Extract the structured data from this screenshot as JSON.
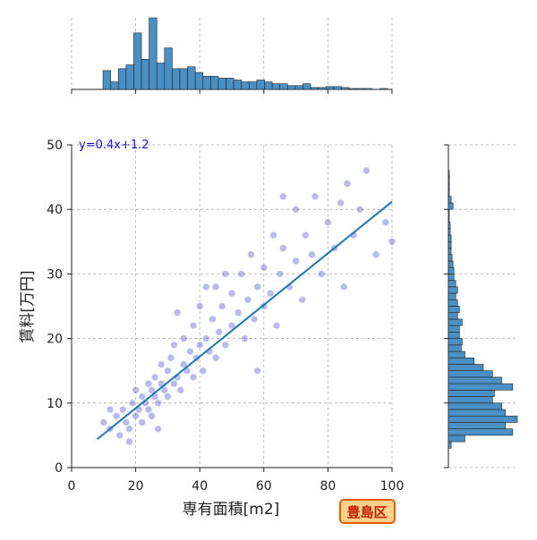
{
  "chart_data": {
    "type": "scatter",
    "xlabel": "専有面積[m2]",
    "ylabel": "賃料[万円]",
    "annotation": "y=0.4x+1.2",
    "badge": "豊島区",
    "xlim": [
      0,
      100
    ],
    "ylim": [
      0,
      50
    ],
    "xticks": [
      0,
      20,
      40,
      60,
      80,
      100
    ],
    "yticks": [
      0,
      10,
      20,
      30,
      40,
      50
    ],
    "grid": true,
    "color": "#3a3acd",
    "fit_color": "#1f77b4",
    "hist_color": "#4a90c4",
    "x": [
      10,
      12,
      14,
      15,
      16,
      17,
      18,
      19,
      20,
      20,
      21,
      22,
      22,
      23,
      24,
      24,
      25,
      25,
      26,
      26,
      27,
      28,
      28,
      29,
      30,
      30,
      31,
      32,
      32,
      33,
      34,
      35,
      35,
      36,
      37,
      38,
      38,
      39,
      40,
      40,
      41,
      42,
      43,
      44,
      45,
      45,
      46,
      47,
      48,
      48,
      50,
      50,
      52,
      53,
      54,
      55,
      56,
      57,
      58,
      60,
      60,
      62,
      63,
      64,
      65,
      66,
      68,
      70,
      70,
      72,
      73,
      75,
      76,
      78,
      80,
      82,
      84,
      85,
      88,
      90,
      92,
      95,
      98,
      100,
      12,
      18,
      27,
      33,
      42,
      58,
      66,
      86
    ],
    "y": [
      7,
      6,
      8,
      5,
      9,
      7,
      6,
      10,
      8,
      12,
      9,
      7,
      11,
      10,
      13,
      9,
      8,
      12,
      11,
      14,
      10,
      13,
      16,
      12,
      11,
      15,
      17,
      13,
      19,
      14,
      12,
      16,
      20,
      15,
      18,
      14,
      22,
      17,
      19,
      25,
      15,
      20,
      18,
      23,
      17,
      28,
      21,
      25,
      19,
      30,
      22,
      27,
      24,
      30,
      20,
      26,
      33,
      23,
      28,
      25,
      31,
      27,
      36,
      22,
      30,
      34,
      28,
      32,
      40,
      26,
      36,
      33,
      42,
      30,
      38,
      34,
      41,
      28,
      36,
      40,
      46,
      33,
      38,
      35,
      9,
      4,
      6,
      24,
      28,
      15,
      42,
      44
    ],
    "fit": {
      "x": [
        8,
        100
      ],
      "y": [
        4.4,
        41.2
      ]
    },
    "marginal_x": {
      "bins": [
        9.8,
        12.2,
        14.6,
        17,
        19.4,
        21.8,
        24.2,
        26.6,
        29,
        31.4,
        33.8,
        36.2,
        38.6,
        41,
        43.4,
        45.8,
        48.2,
        50.6,
        53,
        55.4,
        57.8,
        60.2,
        62.6,
        65,
        67.4,
        69.8,
        72.2,
        74.6,
        77,
        79.4,
        81.8,
        84.2,
        86.6,
        89,
        91.4,
        93.8,
        96.2,
        98.6
      ],
      "counts": [
        20,
        8,
        22,
        26,
        60,
        32,
        76,
        28,
        44,
        22,
        22,
        24,
        18,
        14,
        14,
        12,
        12,
        10,
        8,
        8,
        10,
        8,
        6,
        6,
        4,
        4,
        6,
        2,
        2,
        3,
        3,
        2,
        1,
        1,
        1,
        0,
        1
      ]
    },
    "marginal_y": {
      "bins": [
        3,
        4,
        5,
        6,
        7,
        8,
        9,
        10,
        11,
        12,
        13,
        14,
        15,
        16,
        17,
        18,
        19,
        20,
        21,
        22,
        23,
        24,
        25,
        26,
        27,
        28,
        29,
        30,
        31,
        32,
        33,
        34,
        35,
        36,
        37,
        38,
        39,
        40,
        41,
        42,
        43,
        44,
        45,
        46
      ],
      "counts": [
        3,
        18,
        70,
        62,
        75,
        62,
        58,
        48,
        50,
        70,
        58,
        48,
        38,
        28,
        18,
        14,
        15,
        12,
        12,
        15,
        10,
        12,
        10,
        8,
        10,
        8,
        6,
        6,
        5,
        4,
        3,
        3,
        3,
        2,
        2,
        1,
        1,
        5,
        3,
        1,
        1,
        1,
        1
      ]
    }
  }
}
